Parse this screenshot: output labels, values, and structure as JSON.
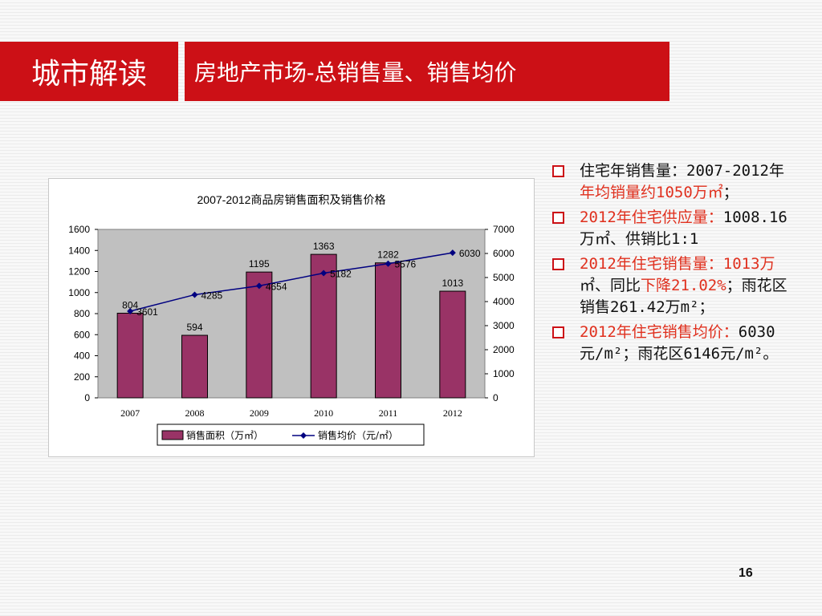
{
  "header": {
    "section_title": "城市解读",
    "slide_title": "房地产市场-总销售量、销售均价"
  },
  "chart_data": {
    "type": "bar",
    "title": "2007-2012商品房销售面积及销售价格",
    "categories": [
      "2007",
      "2008",
      "2009",
      "2010",
      "2011",
      "2012"
    ],
    "series": [
      {
        "name": "销售面积（万㎡）",
        "type": "bar",
        "axis": "left",
        "color": "#993366",
        "values": [
          804,
          594,
          1195,
          1363,
          1282,
          1013
        ]
      },
      {
        "name": "销售均价（元/㎡）",
        "type": "line",
        "axis": "right",
        "color": "#000080",
        "values": [
          3601,
          4285,
          4654,
          5182,
          5576,
          6030
        ]
      }
    ],
    "y_left": {
      "min": 0,
      "max": 1600,
      "ticks": [
        0,
        200,
        400,
        600,
        800,
        1000,
        1200,
        1400,
        1600
      ]
    },
    "y_right": {
      "min": 0,
      "max": 7000,
      "ticks": [
        0,
        1000,
        2000,
        3000,
        4000,
        5000,
        6000,
        7000
      ]
    },
    "legend_placement": "bottom",
    "plot_background": "#c0c0c0"
  },
  "bullets": [
    {
      "segments": [
        {
          "text": "住宅年销售量：2007-2012年",
          "red": false
        },
        {
          "text": "年均销量约1050万㎡",
          "red": true
        },
        {
          "text": "；",
          "red": false
        }
      ]
    },
    {
      "segments": [
        {
          "text": "2012年住宅供应量：",
          "red": true
        },
        {
          "text": "1008.16万㎡、供销比1:1",
          "red": false
        }
      ]
    },
    {
      "segments": [
        {
          "text": "2012年住宅销售量：1013万",
          "red": true
        },
        {
          "text": "㎡、同比",
          "red": false
        },
        {
          "text": "下降21.02%",
          "red": true
        },
        {
          "text": "；雨花区销售261.42万m²；",
          "red": false
        }
      ]
    },
    {
      "segments": [
        {
          "text": "2012年住宅销售均价：",
          "red": true
        },
        {
          "text": "6030元/m²；雨花区6146元/m²。",
          "red": false
        }
      ]
    }
  ],
  "page_number": "16"
}
